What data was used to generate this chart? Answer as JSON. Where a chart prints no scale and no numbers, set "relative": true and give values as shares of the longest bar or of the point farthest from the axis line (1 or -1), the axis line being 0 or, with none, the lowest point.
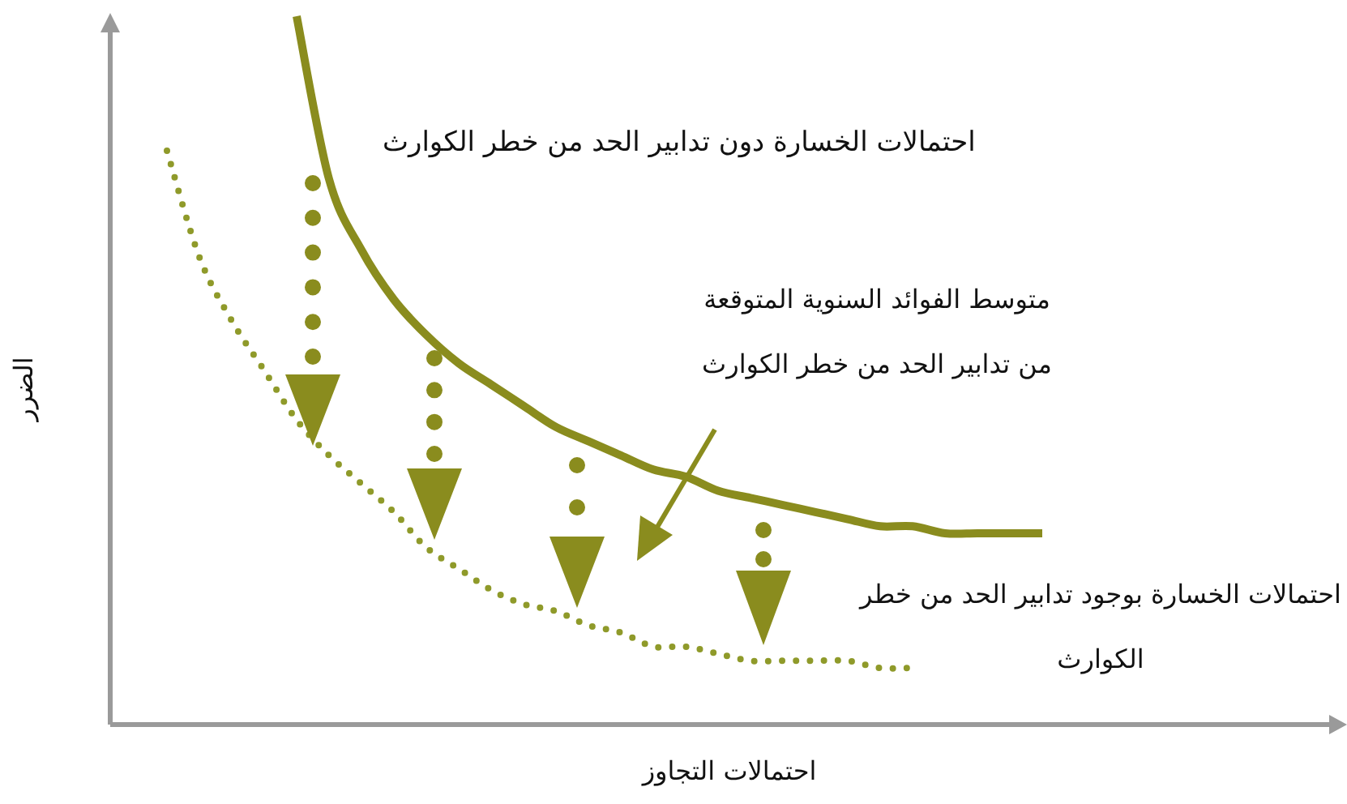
{
  "chart_data": {
    "type": "line",
    "relative": true,
    "xlabel": "احتمالات التجاوز",
    "ylabel": "الضرر",
    "categories": [
      null,
      null,
      null,
      null,
      null,
      null,
      null,
      null,
      null,
      null,
      null,
      null,
      null,
      null,
      null,
      null,
      null,
      null,
      null,
      null,
      null,
      null,
      null,
      null,
      null,
      null,
      null,
      null
    ],
    "series": [
      {
        "name": "احتمالات الخسارة دون تدابير الحد من خطر الكوارث",
        "color": "#8a8c1e",
        "line_style": "solid",
        "values": [
          null,
          null,
          null,
          null,
          1.0,
          0.77,
          0.67,
          0.6,
          0.55,
          0.51,
          0.48,
          0.45,
          0.42,
          0.4,
          0.38,
          0.36,
          0.35,
          0.33,
          0.32,
          0.31,
          0.3,
          0.29,
          0.28,
          0.28,
          0.27,
          0.27,
          0.27,
          0.27
        ]
      },
      {
        "name": "احتمالات الخسارة بوجود تدابير الحد من خطر الكوارث",
        "color": "#8f9a2a",
        "line_style": "dotted",
        "values": [
          0.81,
          0.66,
          0.57,
          0.5,
          0.43,
          0.38,
          0.34,
          0.3,
          0.25,
          0.22,
          0.19,
          0.17,
          0.16,
          0.14,
          0.13,
          0.11,
          0.11,
          0.1,
          0.09,
          0.09,
          0.09,
          0.09,
          0.08,
          0.08,
          null,
          null,
          null,
          null
        ]
      }
    ],
    "annotations": [
      "متوسط الفوائد السنوية المتوقعة من تدابير الحد من خطر الكوارث"
    ],
    "marker": "none"
  }
}
